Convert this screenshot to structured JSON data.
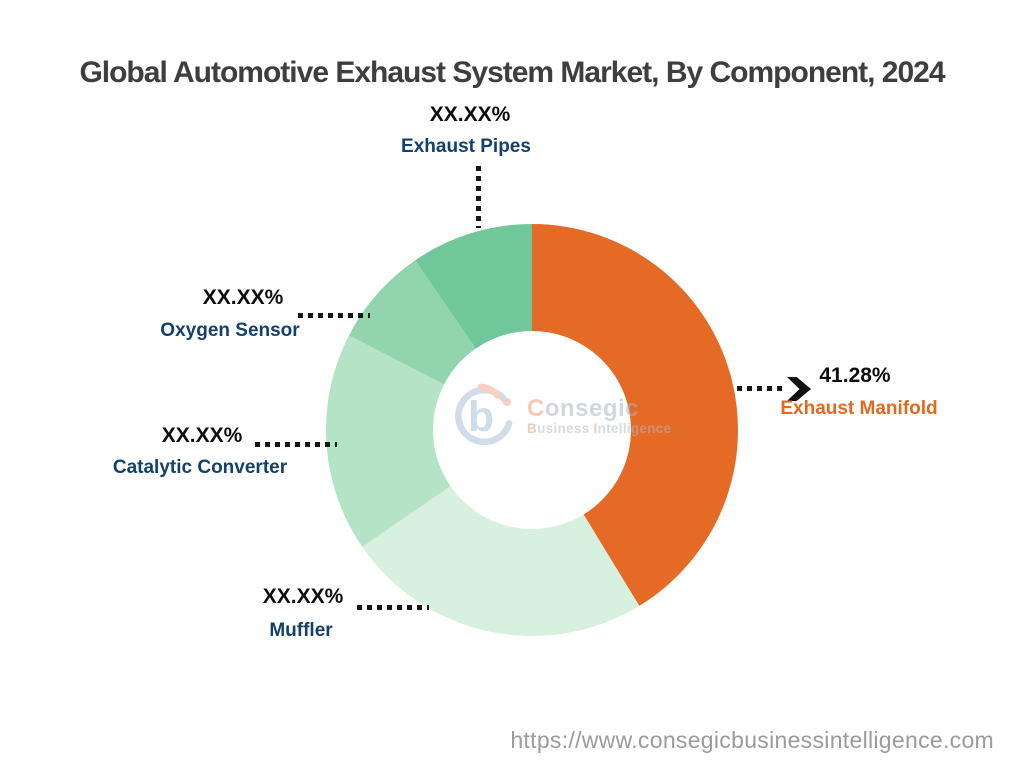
{
  "title": "Global Automotive Exhaust System Market, By Component, 2024",
  "colors": {
    "title_text": "#3e3e3e",
    "label_navy": "#14406e",
    "label_orange": "#e2691f",
    "percent_black": "#0d0d0d",
    "leader_line": "#161616",
    "url_gray": "#9b9b9b"
  },
  "chart_data": {
    "type": "pie",
    "subtype": "donut",
    "title": "Global Automotive Exhaust System Market, By Component, 2024",
    "units": "percent share",
    "start_angle_deg": 0,
    "direction": "clockwise",
    "center": [
      532,
      430
    ],
    "outer_radius": 206,
    "inner_radius": 99,
    "legend_position": "callout-labels",
    "slices": [
      {
        "label": "Exhaust Manifold",
        "display_value": "41.28%",
        "value": 41.28,
        "color": "#e56a26",
        "label_color": "#e2691f"
      },
      {
        "label": "Muffler",
        "display_value": "XX.XX%",
        "value": 24.12,
        "color": "#d7f1de",
        "label_color": "#14406e"
      },
      {
        "label": "Catalytic Converter",
        "display_value": "XX.XX%",
        "value": 17.2,
        "color": "#b4e3c6",
        "label_color": "#14406e"
      },
      {
        "label": "Oxygen Sensor",
        "display_value": "XX.XX%",
        "value": 7.8,
        "color": "#92d4ae",
        "label_color": "#14406e"
      },
      {
        "label": "Exhaust Pipes",
        "display_value": "XX.XX%",
        "value": 9.6,
        "color": "#70c79a",
        "label_color": "#14406e"
      }
    ]
  },
  "watermark": {
    "brand_first": "C",
    "brand_rest": "onsegic",
    "tag_word1_first": "B",
    "tag_word1_rest": "usiness",
    "tag_word2_first": "I",
    "tag_word2_rest": "ntelligence"
  },
  "footer": {
    "url": "https://www.consegicbusinessintelligence.com"
  }
}
